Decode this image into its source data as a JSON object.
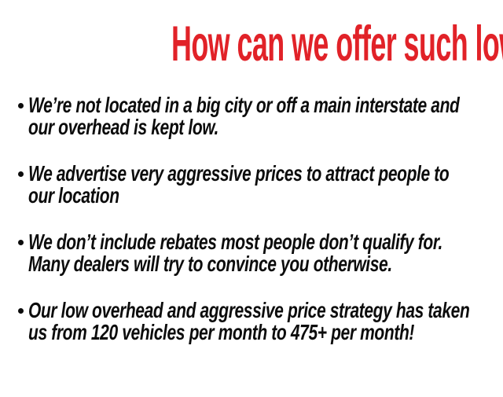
{
  "slide": {
    "headline": "How can we offer such low prices?",
    "headline_color": "#e12228",
    "text_color": "#0c0c0c",
    "background_color": "#ffffff"
  },
  "bullets": [
    {
      "lines": [
        "We’re not located in a big city or off a main interstate and",
        "our overhead is kept low."
      ]
    },
    {
      "lines": [
        "We advertise very aggressive prices to attract people to",
        "our location"
      ]
    },
    {
      "lines": [
        "We don’t include rebates most people don’t qualify for.",
        "Many dealers will try to convince you otherwise."
      ]
    },
    {
      "lines": [
        "Our low overhead and aggressive price strategy has taken",
        "us from 120 vehicles per month to 475+ per month!"
      ]
    }
  ]
}
